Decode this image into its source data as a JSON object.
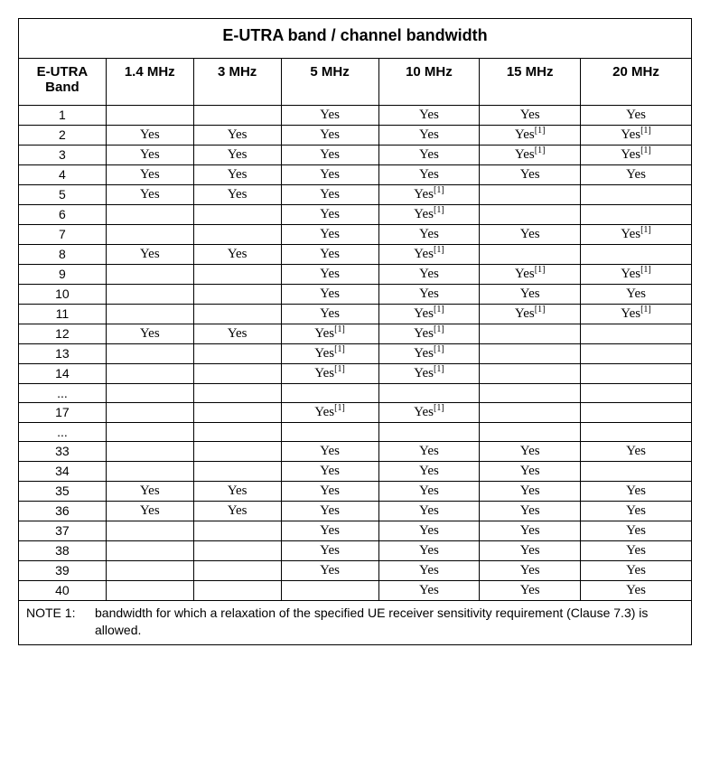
{
  "title": "E-UTRA band / channel bandwidth",
  "columns": [
    "E-UTRA Band",
    "1.4 MHz",
    "3 MHz",
    "5 MHz",
    "10  MHz",
    "15 MHz",
    "20 MHz"
  ],
  "col_widths": [
    "13%",
    "13%",
    "13%",
    "14.5%",
    "15%",
    "15%",
    "16.5%"
  ],
  "yes": "Yes",
  "sup": "[1]",
  "rows": [
    {
      "band": "1",
      "c": [
        "",
        "",
        "y",
        "y",
        "y",
        "y"
      ]
    },
    {
      "band": "2",
      "c": [
        "y",
        "y",
        "y",
        "y",
        "ys",
        "ys"
      ]
    },
    {
      "band": "3",
      "c": [
        "y",
        "y",
        "y",
        "y",
        "ys",
        "ys"
      ]
    },
    {
      "band": "4",
      "c": [
        "y",
        "y",
        "y",
        "y",
        "y",
        "y"
      ]
    },
    {
      "band": "5",
      "c": [
        "y",
        "y",
        "y",
        "ys",
        "",
        ""
      ]
    },
    {
      "band": "6",
      "c": [
        "",
        "",
        "y",
        "ys",
        "",
        ""
      ]
    },
    {
      "band": "7",
      "c": [
        "",
        "",
        "y",
        "y",
        "y",
        "ys"
      ]
    },
    {
      "band": "8",
      "c": [
        "y",
        "y",
        "y",
        "ys",
        "",
        ""
      ]
    },
    {
      "band": "9",
      "c": [
        "",
        "",
        "y",
        "y",
        "ys",
        "ys"
      ]
    },
    {
      "band": "10",
      "c": [
        "",
        "",
        "y",
        "y",
        "y",
        "y"
      ]
    },
    {
      "band": "11",
      "c": [
        "",
        "",
        "y",
        "ys",
        "ys",
        "ys"
      ]
    },
    {
      "band": "12",
      "c": [
        "y",
        "y",
        "ys",
        "ys",
        "",
        ""
      ]
    },
    {
      "band": "13",
      "c": [
        "",
        "",
        "ys",
        "ys",
        "",
        ""
      ]
    },
    {
      "band": "14",
      "c": [
        "",
        "",
        "ys",
        "ys",
        "",
        ""
      ]
    },
    {
      "band": "...",
      "c": [
        "",
        "",
        "",
        "",
        "",
        ""
      ]
    },
    {
      "band": "17",
      "c": [
        "",
        "",
        "ys",
        "ys",
        "",
        ""
      ]
    },
    {
      "band": "...",
      "c": [
        "",
        "",
        "",
        "",
        "",
        ""
      ]
    },
    {
      "band": "33",
      "c": [
        "",
        "",
        "y",
        "y",
        "y",
        "y"
      ]
    },
    {
      "band": "34",
      "c": [
        "",
        "",
        "y",
        "y",
        "y",
        ""
      ]
    },
    {
      "band": "35",
      "c": [
        "y",
        "y",
        "y",
        "y",
        "y",
        "y"
      ]
    },
    {
      "band": "36",
      "c": [
        "y",
        "y",
        "y",
        "y",
        "y",
        "y"
      ]
    },
    {
      "band": "37",
      "c": [
        "",
        "",
        "y",
        "y",
        "y",
        "y"
      ]
    },
    {
      "band": "38",
      "c": [
        "",
        "",
        "y",
        "y",
        "y",
        "y"
      ]
    },
    {
      "band": "39",
      "c": [
        "",
        "",
        "y",
        "y",
        "y",
        "y"
      ]
    },
    {
      "band": "40",
      "c": [
        "",
        "",
        "",
        "y",
        "y",
        "y"
      ]
    }
  ],
  "note_label": "NOTE 1:",
  "note_text": "bandwidth for which a relaxation of the specified UE receiver sensitivity requirement (Clause 7.3) is allowed."
}
